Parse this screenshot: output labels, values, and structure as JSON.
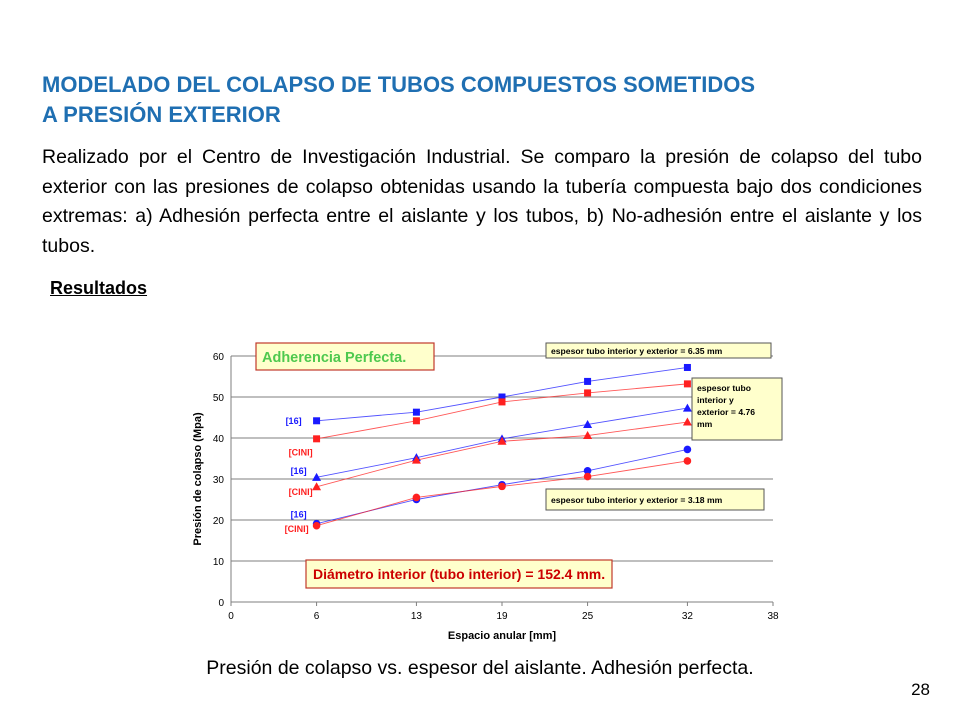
{
  "title": {
    "line1": "MODELADO DEL COLAPSO DE  TUBOS COMPUESTOS SOMETIDOS",
    "line2": "A PRESIÓN EXTERIOR"
  },
  "intro": "Realizado por el Centro de Investigación Industrial. Se comparo la presión de colapso del tubo exterior con las presiones de colapso obtenidas usando la tubería compuesta bajo dos condiciones extremas: a) Adhesión perfecta entre el aislante y los tubos, b) No-adhesión entre el aislante y los tubos.",
  "section_heading": "Resultados",
  "caption": "Presión de colapso vs. espesor del aislante. Adhesión perfecta.",
  "page_number": "28",
  "colors": {
    "title": "#1f6fb2",
    "ref16": "#1a1aff",
    "cini": "#ff2020",
    "box_fill": "#ffffcc",
    "box_border": "#c0392b",
    "legend_text": "#4ec94e"
  },
  "chart_data": {
    "type": "line",
    "xlabel": "Espacio anular [mm]",
    "ylabel": "Presión de colapso (Mpa)",
    "xlim": [
      0,
      38
    ],
    "ylim": [
      0,
      60
    ],
    "xticks": [
      0,
      6,
      13,
      19,
      25,
      32,
      38
    ],
    "yticks": [
      0,
      10,
      20,
      30,
      40,
      50,
      60
    ],
    "grid": "horizontal",
    "x": [
      6,
      13,
      19,
      25,
      32
    ],
    "series": [
      {
        "name": "[16]",
        "group": "6.35",
        "source": "ref16",
        "marker": "square",
        "values": [
          44.2,
          46.3,
          50.0,
          53.8,
          57.2
        ]
      },
      {
        "name": "[CINI]",
        "group": "6.35",
        "source": "cini",
        "marker": "square",
        "values": [
          39.8,
          44.2,
          48.8,
          51.0,
          53.2
        ]
      },
      {
        "name": "[16]",
        "group": "4.76",
        "source": "ref16",
        "marker": "triangle",
        "values": [
          30.4,
          35.2,
          39.8,
          43.3,
          47.3
        ]
      },
      {
        "name": "[CINI]",
        "group": "4.76",
        "source": "cini",
        "marker": "triangle",
        "values": [
          28.1,
          34.6,
          39.2,
          40.6,
          43.9
        ]
      },
      {
        "name": "[16]",
        "group": "3.18",
        "source": "ref16",
        "marker": "circle",
        "values": [
          19.1,
          25.0,
          28.6,
          32.0,
          37.2
        ]
      },
      {
        "name": "[CINI]",
        "group": "3.18",
        "source": "cini",
        "marker": "circle",
        "values": [
          18.6,
          25.5,
          28.2,
          30.6,
          34.4
        ]
      }
    ],
    "annotations": {
      "adherence": "Adherencia Perfecta.",
      "diameter": "Diámetro interior (tubo interior) = 152.4 mm.",
      "box_635": "espesor tubo interior y exterior = 6.35 mm",
      "box_476": [
        "espesor tubo",
        "interior y",
        "exterior = 4.76",
        "mm"
      ],
      "box_318": "espesor tubo interior y exterior = 3.18 mm"
    },
    "series_labels": [
      "[16]",
      "[CINI]",
      "[16]",
      "[CINI]",
      "[16]",
      "[CINI]"
    ]
  }
}
